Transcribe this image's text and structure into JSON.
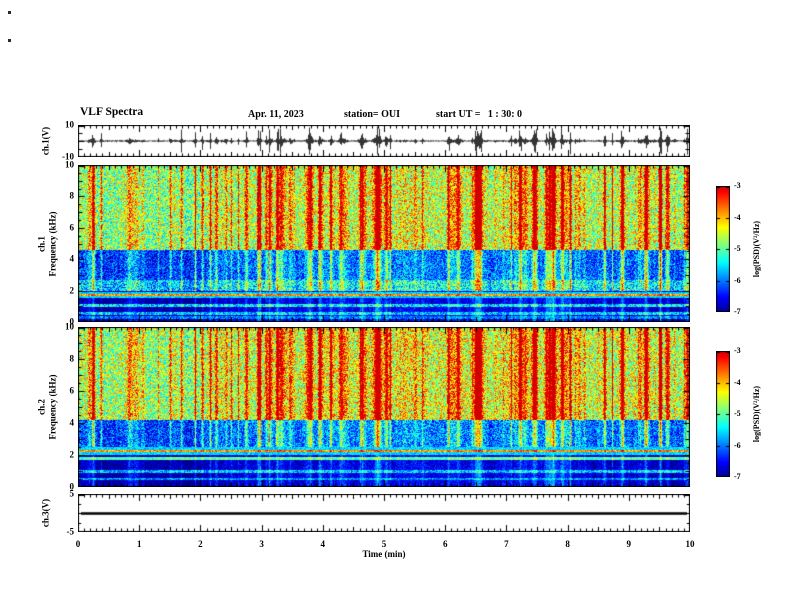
{
  "header": {
    "title": "VLF Spectra",
    "date": "Apr. 11, 2023",
    "station": "station= OUI",
    "start_ut": "start UT =   1 : 30: 0"
  },
  "time_axis": {
    "label": "Time (min)",
    "ticks": [
      "0",
      "1",
      "2",
      "3",
      "4",
      "5",
      "6",
      "7",
      "8",
      "9",
      "10"
    ],
    "range_min": [
      0,
      10
    ]
  },
  "sferic_streaks": {
    "approx_count": 175,
    "shared_across_channels": true,
    "description": "vertical red impulsive sferic streaks at random times, aligned between ch.1 and ch.2 spectrograms and with spikes in the ch.1 waveform"
  },
  "chart_data": [
    {
      "type": "line",
      "id": "ch1_waveform",
      "ylabel": "ch.1(V)",
      "ylim": [
        -10,
        10
      ],
      "yticks": [
        10,
        -10
      ],
      "x_range_min": [
        0,
        10
      ],
      "summary": "Dense broadband receiver voltage noise around 0 V with frequent impulsive spikes up to about ±9 V over the whole 10 minutes."
    },
    {
      "type": "heatmap",
      "id": "ch1_spectrogram",
      "ylabel_lines": [
        "ch.1",
        "Frequency (kHz)"
      ],
      "ylim_khz": [
        0,
        10
      ],
      "yticks": [
        0,
        2,
        4,
        6,
        8,
        10
      ],
      "x_range_min": [
        0,
        10
      ],
      "value_label": "log(PSD)(V²/Hz)",
      "value_range": [
        -7,
        -3
      ],
      "colorbar_ticks": [
        -3,
        -4,
        -5,
        -6,
        -7
      ],
      "bands": [
        {
          "f": [
            4.6,
            10.0
          ],
          "base": -4.7,
          "noise": 0.95,
          "streak_gain": 1.25
        },
        {
          "f": [
            2.7,
            4.6
          ],
          "base": -6.2,
          "noise": 0.7,
          "streak_gain": 0.9
        },
        {
          "f": [
            1.95,
            2.7
          ],
          "base": -5.6,
          "noise": 0.8,
          "streak_gain": 0.8
        },
        {
          "f": [
            0.0,
            1.95
          ],
          "base": -6.8,
          "noise": 0.35,
          "streak_gain": 0.35
        }
      ],
      "h_lines": [
        {
          "f": 1.72,
          "v": -3.9
        },
        {
          "f": 1.05,
          "v": -5.4
        },
        {
          "f": 0.55,
          "v": -5.6
        },
        {
          "f": 0.3,
          "v": -6.0
        }
      ],
      "summary": "Green-yellow broadband power above ~4.5 kHz crossed by many vertical red sferic streaks; blue low-power band ~2.7–4.6 kHz; bright yellow-orange line near 1.7 kHz; dark navy background below ~2 kHz with faint intermittent lines."
    },
    {
      "type": "heatmap",
      "id": "ch2_spectrogram",
      "ylabel_lines": [
        "ch.2",
        "Frequency (kHz)"
      ],
      "ylim_khz": [
        0,
        10
      ],
      "yticks": [
        0,
        2,
        4,
        6,
        8,
        10
      ],
      "x_range_min": [
        0,
        10
      ],
      "value_label": "log(PSD)(V²/Hz)",
      "value_range": [
        -7,
        -3
      ],
      "colorbar_ticks": [
        -3,
        -4,
        -5,
        -6,
        -7
      ],
      "bands": [
        {
          "f": [
            4.2,
            10.0
          ],
          "base": -4.6,
          "noise": 0.95,
          "streak_gain": 1.25
        },
        {
          "f": [
            2.5,
            4.2
          ],
          "base": -6.15,
          "noise": 0.7,
          "streak_gain": 0.9
        },
        {
          "f": [
            0.0,
            2.5
          ],
          "base": -6.8,
          "noise": 0.35,
          "streak_gain": 0.35
        }
      ],
      "h_lines": [
        {
          "f": 2.25,
          "v": -3.9
        },
        {
          "f": 1.8,
          "v": -5.1
        },
        {
          "f": 0.95,
          "v": -5.6
        },
        {
          "f": 0.5,
          "v": -5.9
        }
      ],
      "summary": "Same sferic streak pattern as ch.1; green-yellow power above ~4 kHz, blue band ~2.5–4.2 kHz, bright yellow-orange line near 2.2 kHz, dark navy background below 2 kHz."
    },
    {
      "type": "line",
      "id": "ch3_waveform",
      "ylabel": "ch.3(V)",
      "ylim": [
        -5,
        5
      ],
      "yticks": [
        5,
        -5
      ],
      "x_range_min": [
        0,
        10
      ],
      "summary": "Flat thick trace constant at 0 V (inactive channel)."
    }
  ]
}
